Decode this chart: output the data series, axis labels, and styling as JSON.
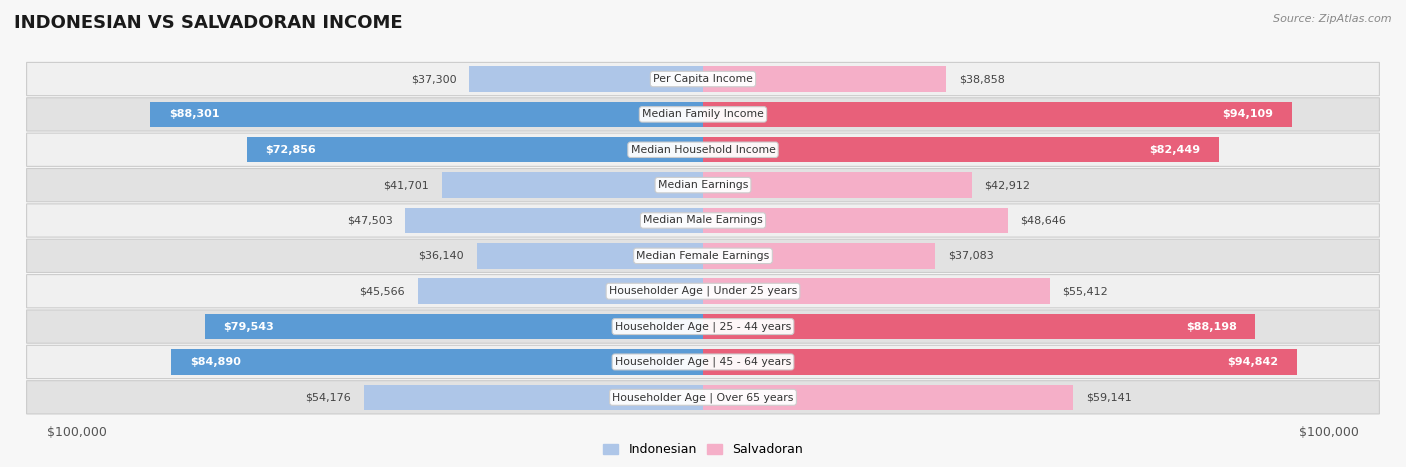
{
  "title": "INDONESIAN VS SALVADORAN INCOME",
  "source": "Source: ZipAtlas.com",
  "max_value": 100000,
  "categories": [
    "Per Capita Income",
    "Median Family Income",
    "Median Household Income",
    "Median Earnings",
    "Median Male Earnings",
    "Median Female Earnings",
    "Householder Age | Under 25 years",
    "Householder Age | 25 - 44 years",
    "Householder Age | 45 - 64 years",
    "Householder Age | Over 65 years"
  ],
  "indonesian": [
    37300,
    88301,
    72856,
    41701,
    47503,
    36140,
    45566,
    79543,
    84890,
    54176
  ],
  "salvadoran": [
    38858,
    94109,
    82449,
    42912,
    48646,
    37083,
    55412,
    88198,
    94842,
    59141
  ],
  "indonesian_labels": [
    "$37,300",
    "$88,301",
    "$72,856",
    "$41,701",
    "$47,503",
    "$36,140",
    "$45,566",
    "$79,543",
    "$84,890",
    "$54,176"
  ],
  "salvadoran_labels": [
    "$38,858",
    "$94,109",
    "$82,449",
    "$42,912",
    "$48,646",
    "$37,083",
    "$55,412",
    "$88,198",
    "$94,842",
    "$59,141"
  ],
  "indo_large_threshold": 60000,
  "salv_large_threshold": 60000,
  "color_indonesian_light": "#aec6e8",
  "color_indonesian_dark": "#5b9bd5",
  "color_salvadoran_light": "#f5afc8",
  "color_salvadoran_dark": "#e8607a",
  "bg_row_light": "#f0f0f0",
  "bg_row_dark": "#e2e2e2",
  "bg_main": "#f7f7f7",
  "label_box_color": "#ffffff",
  "label_box_edge": "#cccccc",
  "title_color": "#1a1a1a",
  "axis_color": "#555555",
  "text_dark": "#333333",
  "text_outside_color": "#444444"
}
